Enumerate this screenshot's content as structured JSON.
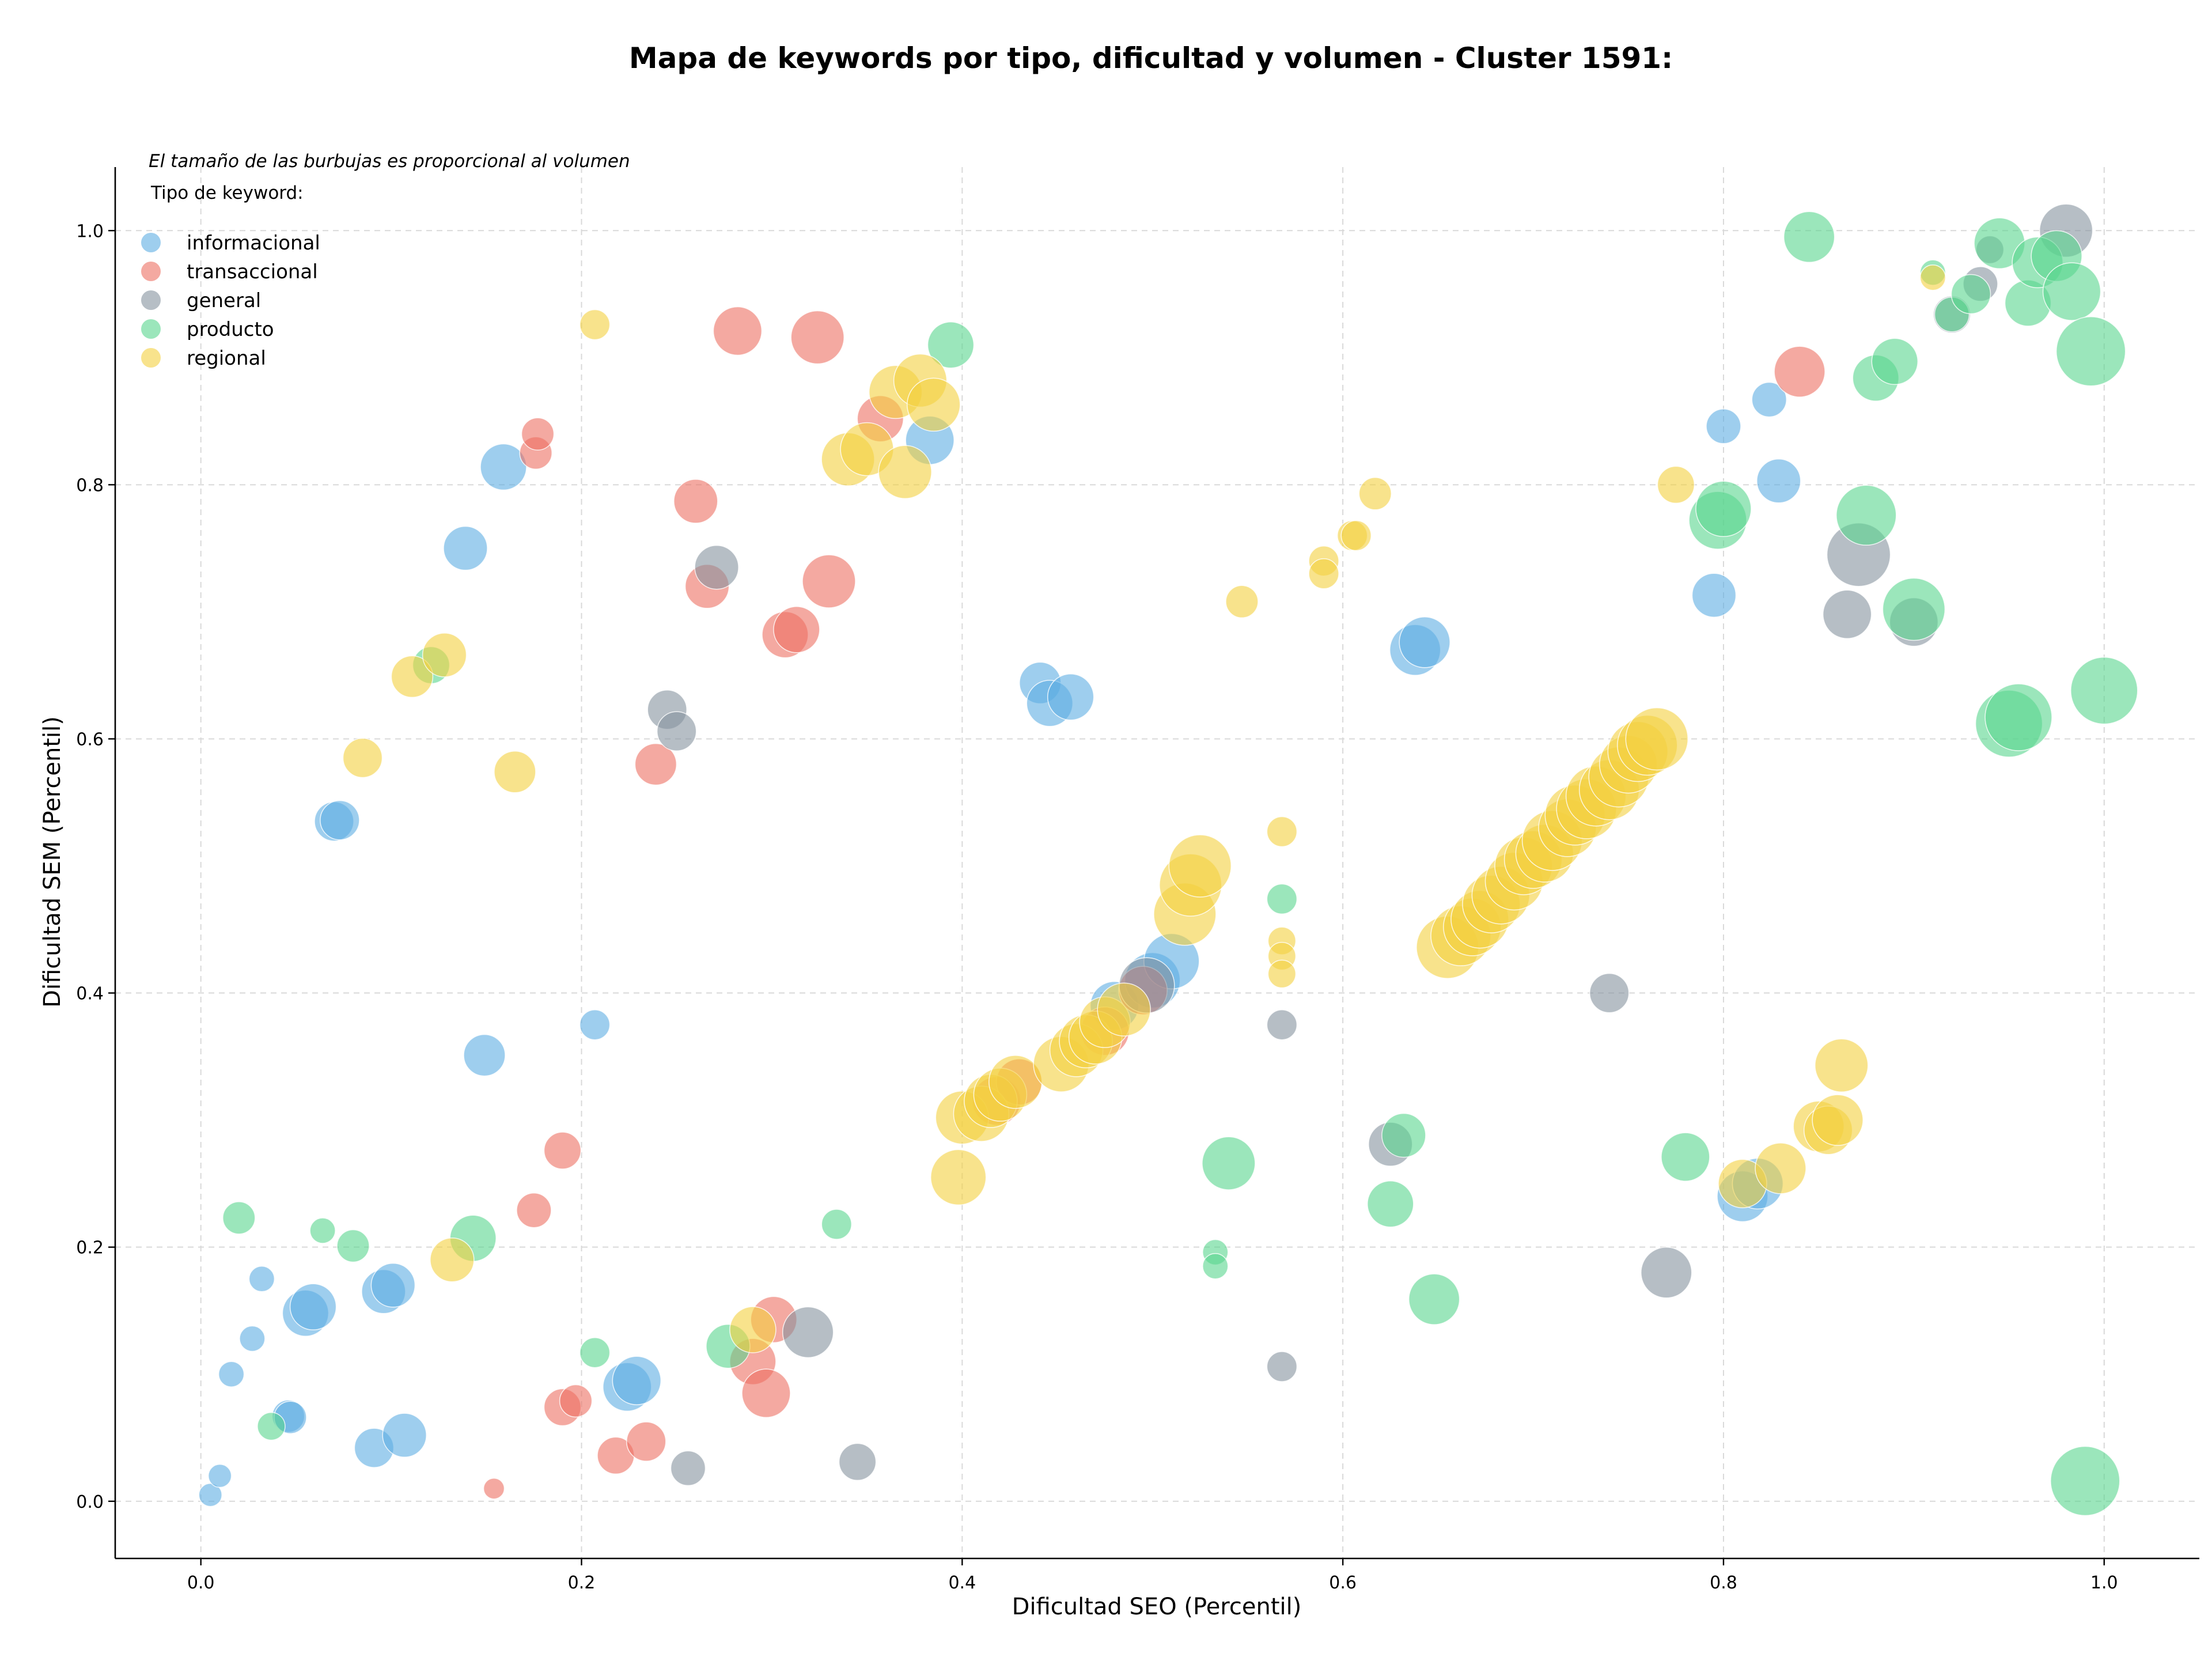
{
  "chart_data": {
    "type": "scatter",
    "title": "Mapa de keywords por tipo, dificultad y volumen - Cluster 1591:",
    "xlabel": "Dificultad SEO (Percentil)",
    "ylabel": "Dificultad SEM (Percentil)",
    "xlim": [
      -0.045,
      1.05
    ],
    "ylim": [
      -0.045,
      1.05
    ],
    "x_ticks": [
      "0.0",
      "0.2",
      "0.4",
      "0.6",
      "0.8",
      "1.0"
    ],
    "y_ticks": [
      "0.0",
      "0.2",
      "0.4",
      "0.6",
      "0.8",
      "1.0"
    ],
    "grid": true,
    "size_note": "El tamaño de las burbujas es proporcional al volumen",
    "legend": {
      "title": "Tipo de keyword:",
      "placement": "top-left"
    },
    "series": [
      {
        "name": "informacional",
        "color": "#5DADE2",
        "points": [
          [
            0.005,
            0.005,
            20
          ],
          [
            0.01,
            0.02,
            20
          ],
          [
            0.016,
            0.1,
            22
          ],
          [
            0.027,
            0.128,
            22
          ],
          [
            0.032,
            0.175,
            22
          ],
          [
            0.046,
            0.067,
            28
          ],
          [
            0.047,
            0.066,
            28
          ],
          [
            0.055,
            0.148,
            40
          ],
          [
            0.059,
            0.153,
            40
          ],
          [
            0.07,
            0.535,
            34
          ],
          [
            0.073,
            0.536,
            34
          ],
          [
            0.091,
            0.042,
            34
          ],
          [
            0.096,
            0.165,
            38
          ],
          [
            0.101,
            0.17,
            38
          ],
          [
            0.107,
            0.052,
            38
          ],
          [
            0.139,
            0.75,
            38
          ],
          [
            0.149,
            0.351,
            36
          ],
          [
            0.159,
            0.814,
            40
          ],
          [
            0.207,
            0.375,
            26
          ],
          [
            0.224,
            0.09,
            42
          ],
          [
            0.229,
            0.095,
            42
          ],
          [
            0.383,
            0.835,
            42
          ],
          [
            0.441,
            0.644,
            36
          ],
          [
            0.446,
            0.628,
            40
          ],
          [
            0.457,
            0.633,
            40
          ],
          [
            0.48,
            0.39,
            42
          ],
          [
            0.5,
            0.41,
            48
          ],
          [
            0.51,
            0.425,
            48
          ],
          [
            0.638,
            0.67,
            44
          ],
          [
            0.643,
            0.676,
            44
          ],
          [
            0.795,
            0.713,
            38
          ],
          [
            0.8,
            0.846,
            30
          ],
          [
            0.824,
            0.867,
            30
          ],
          [
            0.829,
            0.803,
            38
          ],
          [
            0.81,
            0.24,
            44
          ],
          [
            0.818,
            0.25,
            44
          ]
        ]
      },
      {
        "name": "transaccional",
        "color": "#EC7063",
        "points": [
          [
            0.154,
            0.01,
            18
          ],
          [
            0.175,
            0.229,
            30
          ],
          [
            0.176,
            0.825,
            28
          ],
          [
            0.177,
            0.84,
            28
          ],
          [
            0.19,
            0.276,
            32
          ],
          [
            0.19,
            0.074,
            32
          ],
          [
            0.197,
            0.079,
            28
          ],
          [
            0.218,
            0.036,
            32
          ],
          [
            0.234,
            0.047,
            34
          ],
          [
            0.239,
            0.58,
            36
          ],
          [
            0.26,
            0.787,
            38
          ],
          [
            0.266,
            0.72,
            38
          ],
          [
            0.282,
            0.921,
            42
          ],
          [
            0.29,
            0.11,
            40
          ],
          [
            0.297,
            0.085,
            42
          ],
          [
            0.301,
            0.143,
            40
          ],
          [
            0.307,
            0.682,
            40
          ],
          [
            0.313,
            0.686,
            40
          ],
          [
            0.324,
            0.916,
            46
          ],
          [
            0.33,
            0.724,
            46
          ],
          [
            0.357,
            0.852,
            40
          ],
          [
            0.418,
            0.315,
            42
          ],
          [
            0.43,
            0.33,
            40
          ],
          [
            0.475,
            0.37,
            42
          ],
          [
            0.495,
            0.402,
            42
          ],
          [
            0.84,
            0.889,
            44
          ]
        ]
      },
      {
        "name": "general",
        "color": "#85929E",
        "points": [
          [
            0.245,
            0.623,
            34
          ],
          [
            0.25,
            0.606,
            34
          ],
          [
            0.256,
            0.026,
            30
          ],
          [
            0.271,
            0.735,
            38
          ],
          [
            0.319,
            0.133,
            44
          ],
          [
            0.345,
            0.031,
            32
          ],
          [
            0.497,
            0.406,
            48
          ],
          [
            0.568,
            0.375,
            26
          ],
          [
            0.568,
            0.106,
            26
          ],
          [
            0.625,
            0.281,
            38
          ],
          [
            0.74,
            0.4,
            34
          ],
          [
            0.77,
            0.18,
            44
          ],
          [
            0.865,
            0.698,
            42
          ],
          [
            0.871,
            0.745,
            55
          ],
          [
            0.9,
            0.692,
            42
          ],
          [
            0.92,
            0.934,
            32
          ],
          [
            0.935,
            0.958,
            30
          ],
          [
            0.94,
            0.985,
            24
          ],
          [
            0.98,
            1.0,
            46
          ]
        ]
      },
      {
        "name": "producto",
        "color": "#58D68D",
        "points": [
          [
            0.02,
            0.223,
            28
          ],
          [
            0.037,
            0.059,
            24
          ],
          [
            0.064,
            0.213,
            22
          ],
          [
            0.08,
            0.201,
            28
          ],
          [
            0.121,
            0.658,
            32
          ],
          [
            0.143,
            0.207,
            40
          ],
          [
            0.207,
            0.117,
            26
          ],
          [
            0.277,
            0.122,
            38
          ],
          [
            0.334,
            0.218,
            26
          ],
          [
            0.394,
            0.91,
            40
          ],
          [
            0.533,
            0.196,
            22
          ],
          [
            0.533,
            0.185,
            22
          ],
          [
            0.54,
            0.266,
            46
          ],
          [
            0.568,
            0.474,
            26
          ],
          [
            0.625,
            0.234,
            40
          ],
          [
            0.632,
            0.288,
            38
          ],
          [
            0.648,
            0.159,
            44
          ],
          [
            0.78,
            0.271,
            42
          ],
          [
            0.797,
            0.772,
            50
          ],
          [
            0.8,
            0.781,
            48
          ],
          [
            0.845,
            0.995,
            44
          ],
          [
            0.875,
            0.776,
            52
          ],
          [
            0.88,
            0.884,
            40
          ],
          [
            0.89,
            0.897,
            40
          ],
          [
            0.9,
            0.702,
            54
          ],
          [
            0.91,
            0.967,
            22
          ],
          [
            0.92,
            0.934,
            30
          ],
          [
            0.93,
            0.95,
            34
          ],
          [
            0.945,
            0.99,
            44
          ],
          [
            0.95,
            0.612,
            58
          ],
          [
            0.955,
            0.617,
            58
          ],
          [
            0.96,
            0.943,
            40
          ],
          [
            0.965,
            0.975,
            44
          ],
          [
            0.975,
            0.98,
            44
          ],
          [
            0.983,
            0.952,
            50
          ],
          [
            0.993,
            0.905,
            60
          ],
          [
            1.0,
            0.638,
            58
          ],
          [
            0.99,
            0.016,
            60
          ]
        ]
      },
      {
        "name": "regional",
        "color": "#F4D03F",
        "points": [
          [
            0.085,
            0.585,
            34
          ],
          [
            0.111,
            0.649,
            36
          ],
          [
            0.128,
            0.666,
            38
          ],
          [
            0.132,
            0.19,
            38
          ],
          [
            0.165,
            0.574,
            36
          ],
          [
            0.207,
            0.926,
            26
          ],
          [
            0.29,
            0.135,
            40
          ],
          [
            0.34,
            0.82,
            46
          ],
          [
            0.35,
            0.828,
            46
          ],
          [
            0.365,
            0.873,
            46
          ],
          [
            0.37,
            0.81,
            46
          ],
          [
            0.378,
            0.882,
            46
          ],
          [
            0.385,
            0.863,
            46
          ],
          [
            0.398,
            0.255,
            48
          ],
          [
            0.4,
            0.302,
            46
          ],
          [
            0.41,
            0.305,
            48
          ],
          [
            0.415,
            0.315,
            46
          ],
          [
            0.42,
            0.32,
            46
          ],
          [
            0.428,
            0.33,
            46
          ],
          [
            0.452,
            0.344,
            48
          ],
          [
            0.46,
            0.355,
            46
          ],
          [
            0.465,
            0.362,
            46
          ],
          [
            0.47,
            0.365,
            46
          ],
          [
            0.475,
            0.377,
            44
          ],
          [
            0.485,
            0.387,
            46
          ],
          [
            0.517,
            0.462,
            54
          ],
          [
            0.52,
            0.485,
            54
          ],
          [
            0.525,
            0.5,
            54
          ],
          [
            0.547,
            0.708,
            28
          ],
          [
            0.568,
            0.527,
            26
          ],
          [
            0.568,
            0.441,
            24
          ],
          [
            0.568,
            0.429,
            24
          ],
          [
            0.568,
            0.415,
            24
          ],
          [
            0.59,
            0.74,
            26
          ],
          [
            0.59,
            0.73,
            26
          ],
          [
            0.605,
            0.76,
            26
          ],
          [
            0.607,
            0.76,
            26
          ],
          [
            0.617,
            0.793,
            28
          ],
          [
            0.655,
            0.436,
            54
          ],
          [
            0.662,
            0.445,
            52
          ],
          [
            0.668,
            0.452,
            50
          ],
          [
            0.672,
            0.458,
            50
          ],
          [
            0.678,
            0.47,
            50
          ],
          [
            0.683,
            0.477,
            50
          ],
          [
            0.69,
            0.488,
            50
          ],
          [
            0.695,
            0.5,
            50
          ],
          [
            0.7,
            0.505,
            50
          ],
          [
            0.706,
            0.51,
            50
          ],
          [
            0.71,
            0.52,
            52
          ],
          [
            0.718,
            0.53,
            50
          ],
          [
            0.722,
            0.54,
            52
          ],
          [
            0.728,
            0.545,
            52
          ],
          [
            0.733,
            0.555,
            52
          ],
          [
            0.74,
            0.56,
            52
          ],
          [
            0.745,
            0.57,
            52
          ],
          [
            0.75,
            0.58,
            50
          ],
          [
            0.755,
            0.59,
            52
          ],
          [
            0.76,
            0.595,
            52
          ],
          [
            0.765,
            0.6,
            54
          ],
          [
            0.775,
            0.8,
            32
          ],
          [
            0.81,
            0.25,
            42
          ],
          [
            0.83,
            0.262,
            44
          ],
          [
            0.85,
            0.295,
            44
          ],
          [
            0.855,
            0.292,
            42
          ],
          [
            0.86,
            0.3,
            44
          ],
          [
            0.862,
            0.343,
            46
          ],
          [
            0.91,
            0.963,
            22
          ]
        ]
      }
    ]
  }
}
